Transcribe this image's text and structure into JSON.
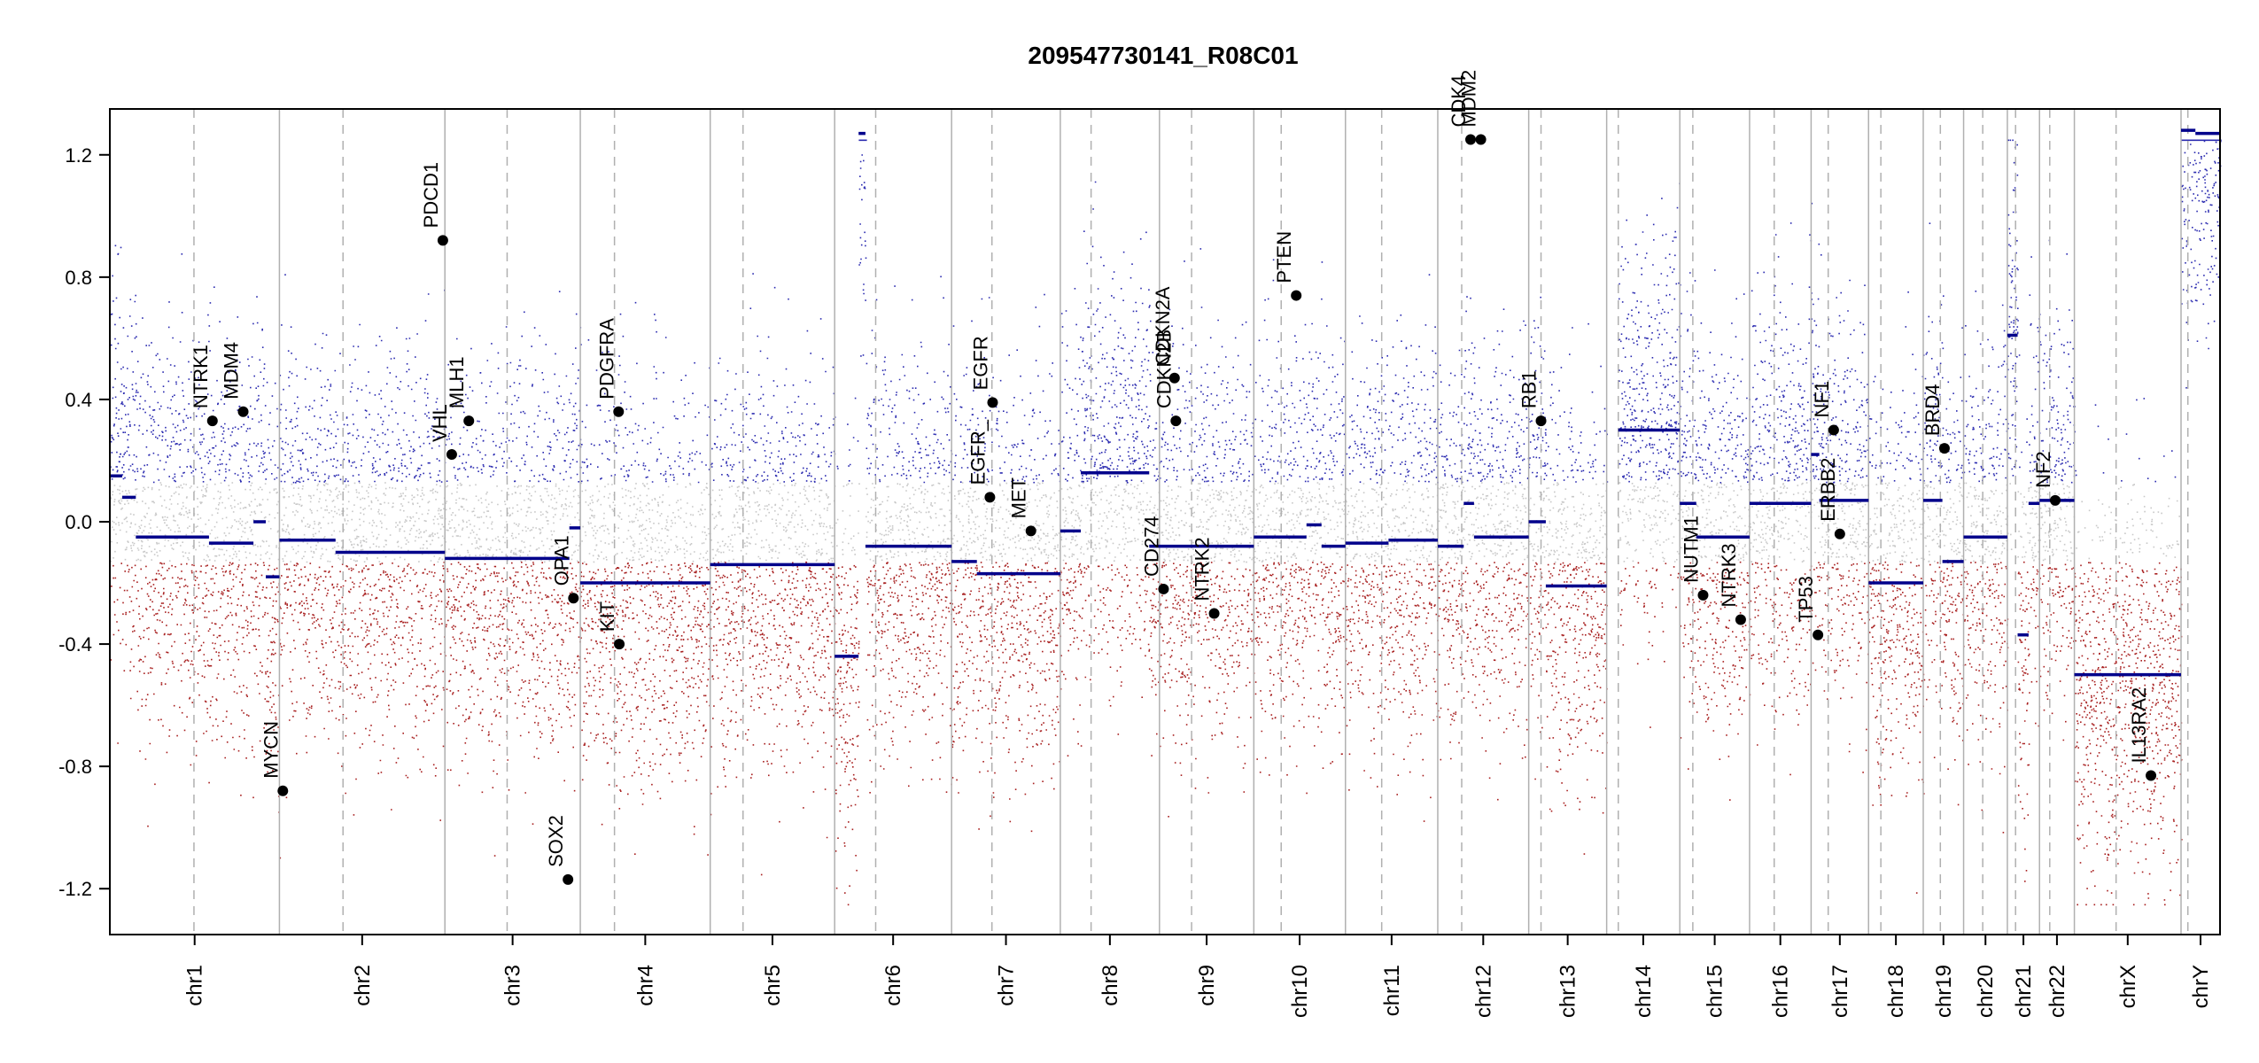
{
  "chart_data": {
    "type": "scatter",
    "title": "209547730141_R08C01",
    "ylim": [
      -1.35,
      1.35
    ],
    "y_ticks": [
      "1.2",
      "0.8",
      "0.4",
      "0.0",
      "-0.4",
      "-0.8",
      "-1.2"
    ],
    "y_tick_values": [
      1.2,
      0.8,
      0.4,
      0.0,
      -0.4,
      -0.8,
      -1.2
    ],
    "grid": false,
    "legend": "none",
    "colors": {
      "gain": "#2b2bb0",
      "loss": "#a82020",
      "neutral": "#c8c8c8",
      "segment": "#00008b",
      "chr_boundary": "#b0b0b0",
      "centromere": "#b0b0b0",
      "gene_point": "#000000"
    },
    "chromosomes": [
      {
        "name": "chr1",
        "start": 0,
        "end": 248,
        "centromere": 123
      },
      {
        "name": "chr2",
        "start": 248,
        "end": 490,
        "centromere": 341
      },
      {
        "name": "chr3",
        "start": 490,
        "end": 688,
        "centromere": 581
      },
      {
        "name": "chr4",
        "start": 688,
        "end": 878,
        "centromere": 738
      },
      {
        "name": "chr5",
        "start": 878,
        "end": 1060,
        "centromere": 926
      },
      {
        "name": "chr6",
        "start": 1060,
        "end": 1231,
        "centromere": 1120
      },
      {
        "name": "chr7",
        "start": 1231,
        "end": 1390,
        "centromere": 1290
      },
      {
        "name": "chr8",
        "start": 1390,
        "end": 1535,
        "centromere": 1435
      },
      {
        "name": "chr9",
        "start": 1535,
        "end": 1673,
        "centromere": 1582
      },
      {
        "name": "chr10",
        "start": 1673,
        "end": 1807,
        "centromere": 1713
      },
      {
        "name": "chr11",
        "start": 1807,
        "end": 1942,
        "centromere": 1860
      },
      {
        "name": "chr12",
        "start": 1942,
        "end": 2075,
        "centromere": 1977
      },
      {
        "name": "chr13",
        "start": 2075,
        "end": 2189,
        "centromere": 2093
      },
      {
        "name": "chr14",
        "start": 2189,
        "end": 2296,
        "centromere": 2206
      },
      {
        "name": "chr15",
        "start": 2296,
        "end": 2398,
        "centromere": 2315
      },
      {
        "name": "chr16",
        "start": 2398,
        "end": 2488,
        "centromere": 2434
      },
      {
        "name": "chr17",
        "start": 2488,
        "end": 2572,
        "centromere": 2513
      },
      {
        "name": "chr18",
        "start": 2572,
        "end": 2652,
        "centromere": 2590
      },
      {
        "name": "chr19",
        "start": 2652,
        "end": 2711,
        "centromere": 2677
      },
      {
        "name": "chr20",
        "start": 2711,
        "end": 2775,
        "centromere": 2739
      },
      {
        "name": "chr21",
        "start": 2775,
        "end": 2822,
        "centromere": 2787
      },
      {
        "name": "chr22",
        "start": 2822,
        "end": 2873,
        "centromere": 2837
      },
      {
        "name": "chrX",
        "start": 2873,
        "end": 3029,
        "centromere": 2934
      },
      {
        "name": "chrY",
        "start": 3029,
        "end": 3086,
        "centromere": 3039
      }
    ],
    "segments": [
      {
        "x0": 0,
        "x1": 18,
        "y": 0.15
      },
      {
        "x0": 18,
        "x1": 38,
        "y": 0.08
      },
      {
        "x0": 38,
        "x1": 145,
        "y": -0.05
      },
      {
        "x0": 145,
        "x1": 210,
        "y": -0.07
      },
      {
        "x0": 210,
        "x1": 228,
        "y": 0.0
      },
      {
        "x0": 228,
        "x1": 248,
        "y": -0.18
      },
      {
        "x0": 248,
        "x1": 330,
        "y": -0.06
      },
      {
        "x0": 330,
        "x1": 490,
        "y": -0.1
      },
      {
        "x0": 490,
        "x1": 672,
        "y": -0.12
      },
      {
        "x0": 672,
        "x1": 688,
        "y": -0.02
      },
      {
        "x0": 688,
        "x1": 878,
        "y": -0.2
      },
      {
        "x0": 878,
        "x1": 1060,
        "y": -0.14
      },
      {
        "x0": 1060,
        "x1": 1095,
        "y": -0.44
      },
      {
        "x0": 1095,
        "x1": 1105,
        "y": 1.27
      },
      {
        "x0": 1105,
        "x1": 1231,
        "y": -0.08
      },
      {
        "x0": 1231,
        "x1": 1268,
        "y": -0.13
      },
      {
        "x0": 1268,
        "x1": 1390,
        "y": -0.17
      },
      {
        "x0": 1390,
        "x1": 1420,
        "y": -0.03
      },
      {
        "x0": 1420,
        "x1": 1520,
        "y": 0.16
      },
      {
        "x0": 1520,
        "x1": 1673,
        "y": -0.08
      },
      {
        "x0": 1673,
        "x1": 1750,
        "y": -0.05
      },
      {
        "x0": 1750,
        "x1": 1772,
        "y": -0.01
      },
      {
        "x0": 1772,
        "x1": 1807,
        "y": -0.08
      },
      {
        "x0": 1807,
        "x1": 1870,
        "y": -0.07
      },
      {
        "x0": 1870,
        "x1": 1942,
        "y": -0.06
      },
      {
        "x0": 1942,
        "x1": 1980,
        "y": -0.08
      },
      {
        "x0": 1980,
        "x1": 1995,
        "y": 0.06
      },
      {
        "x0": 1995,
        "x1": 2012,
        "y": -0.05
      },
      {
        "x0": 2012,
        "x1": 2075,
        "y": -0.05
      },
      {
        "x0": 2075,
        "x1": 2100,
        "y": 0.0
      },
      {
        "x0": 2100,
        "x1": 2189,
        "y": -0.21
      },
      {
        "x0": 2206,
        "x1": 2296,
        "y": 0.3
      },
      {
        "x0": 2296,
        "x1": 2320,
        "y": 0.06
      },
      {
        "x0": 2320,
        "x1": 2398,
        "y": -0.05
      },
      {
        "x0": 2398,
        "x1": 2488,
        "y": 0.06
      },
      {
        "x0": 2488,
        "x1": 2500,
        "y": 0.22
      },
      {
        "x0": 2500,
        "x1": 2572,
        "y": 0.07
      },
      {
        "x0": 2572,
        "x1": 2652,
        "y": -0.2
      },
      {
        "x0": 2652,
        "x1": 2680,
        "y": 0.07
      },
      {
        "x0": 2680,
        "x1": 2711,
        "y": -0.13
      },
      {
        "x0": 2711,
        "x1": 2775,
        "y": -0.05
      },
      {
        "x0": 2775,
        "x1": 2790,
        "y": 0.61
      },
      {
        "x0": 2790,
        "x1": 2806,
        "y": -0.37
      },
      {
        "x0": 2806,
        "x1": 2822,
        "y": 0.06
      },
      {
        "x0": 2822,
        "x1": 2873,
        "y": 0.07
      },
      {
        "x0": 2873,
        "x1": 3029,
        "y": -0.5
      },
      {
        "x0": 3029,
        "x1": 3050,
        "y": 1.28
      },
      {
        "x0": 3050,
        "x1": 3086,
        "y": 1.27
      }
    ],
    "genes": [
      {
        "name": "NTRK1",
        "x": 150,
        "y": 0.33
      },
      {
        "name": "MDM4",
        "x": 195,
        "y": 0.36
      },
      {
        "name": "MYCN",
        "x": 253,
        "y": -0.88
      },
      {
        "name": "VHL",
        "x": 500,
        "y": 0.22
      },
      {
        "name": "PDCD1",
        "x": 487,
        "y": 0.92
      },
      {
        "name": "MLH1",
        "x": 525,
        "y": 0.33
      },
      {
        "name": "SOX2",
        "x": 670,
        "y": -1.17
      },
      {
        "name": "OPA1",
        "x": 678,
        "y": -0.25
      },
      {
        "name": "PDGFRA",
        "x": 744,
        "y": 0.36
      },
      {
        "name": "KIT",
        "x": 745,
        "y": -0.4
      },
      {
        "name": "EGFR_",
        "x": 1287,
        "y": 0.08
      },
      {
        "name": "EGFR",
        "x": 1291,
        "y": 0.39
      },
      {
        "name": "MET",
        "x": 1347,
        "y": -0.03
      },
      {
        "name": "CD274",
        "x": 1541,
        "y": -0.22
      },
      {
        "name": "CDKN2A",
        "x": 1557,
        "y": 0.47
      },
      {
        "name": "CDKN2B",
        "x": 1559,
        "y": 0.33
      },
      {
        "name": "NTRK2",
        "x": 1615,
        "y": -0.3
      },
      {
        "name": "PTEN",
        "x": 1735,
        "y": 0.74
      },
      {
        "name": "CDK4",
        "x": 1990,
        "y": 1.25
      },
      {
        "name": "MDM2",
        "x": 2005,
        "y": 1.25
      },
      {
        "name": "RB1",
        "x": 2093,
        "y": 0.33
      },
      {
        "name": "NUTM1",
        "x": 2330,
        "y": -0.24
      },
      {
        "name": "NTRK3",
        "x": 2385,
        "y": -0.32
      },
      {
        "name": "TP53",
        "x": 2498,
        "y": -0.37
      },
      {
        "name": "NF1",
        "x": 2521,
        "y": 0.3
      },
      {
        "name": "ERBB2",
        "x": 2530,
        "y": -0.04
      },
      {
        "name": "BRD4",
        "x": 2683,
        "y": 0.24
      },
      {
        "name": "NF2",
        "x": 2845,
        "y": 0.07
      },
      {
        "name": "IL13RA2",
        "x": 2985,
        "y": -0.83
      }
    ]
  }
}
